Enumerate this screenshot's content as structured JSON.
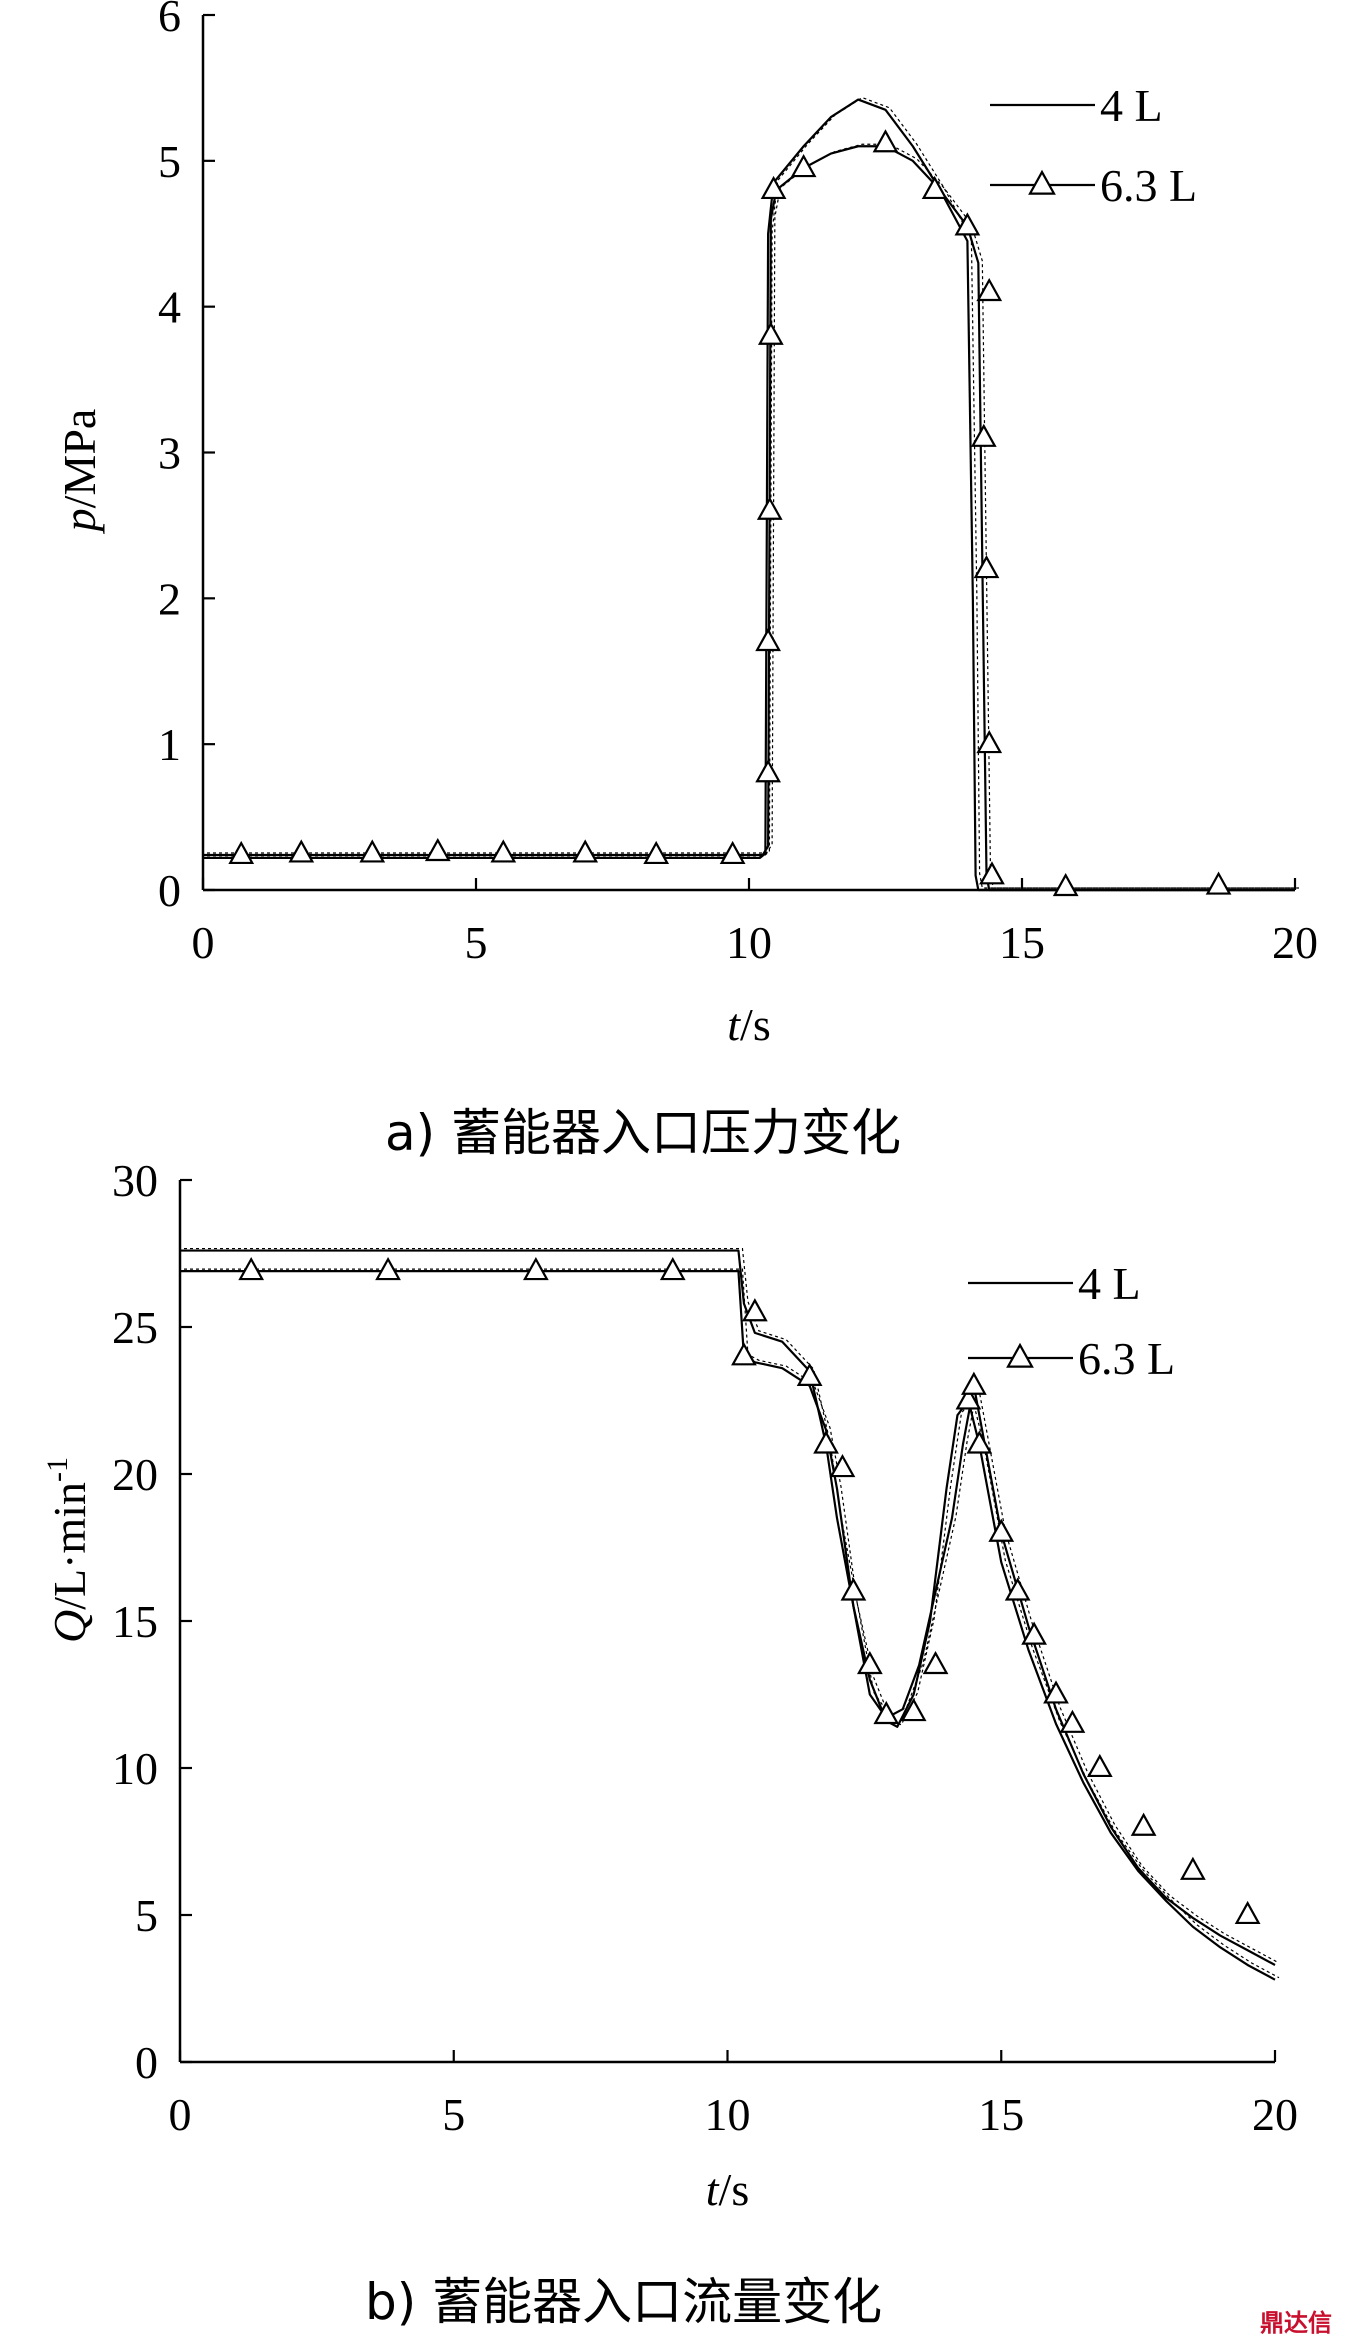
{
  "chart_data": [
    {
      "type": "line",
      "caption": "a)  蓄能器入口压力变化",
      "xlabel_italic": "t",
      "xlabel_unit": "/s",
      "ylabel_italic": "p",
      "ylabel_unit": "/MPa",
      "xlim": [
        0,
        20
      ],
      "ylim": [
        0,
        6
      ],
      "xticks": [
        0,
        5,
        10,
        15,
        20
      ],
      "yticks": [
        0,
        1,
        2,
        3,
        4,
        5,
        6
      ],
      "legend_position": "top-right",
      "series": [
        {
          "name": "4 L",
          "marker": "none",
          "x": [
            0,
            10.2,
            10.3,
            10.35,
            10.45,
            11,
            11.5,
            12,
            12.5,
            13,
            13.5,
            14,
            14.1,
            14.15,
            14.2,
            15,
            20
          ],
          "y": [
            0.22,
            0.22,
            0.25,
            4.5,
            4.85,
            5.1,
            5.3,
            5.42,
            5.35,
            5.1,
            4.8,
            4.45,
            2.0,
            0.1,
            0,
            0,
            0
          ]
        },
        {
          "name": "6.3 L",
          "marker": "triangle",
          "x": [
            0,
            10.25,
            10.35,
            10.4,
            10.5,
            11,
            11.5,
            12,
            12.5,
            13,
            13.5,
            14,
            14.2,
            14.3,
            14.35,
            14.4,
            15,
            20
          ],
          "y": [
            0.24,
            0.24,
            0.3,
            4.6,
            4.8,
            4.95,
            5.05,
            5.1,
            5.1,
            5.0,
            4.8,
            4.55,
            4.3,
            1.5,
            0.1,
            0,
            0,
            0
          ],
          "marker_x": [
            0.7,
            1.8,
            3.1,
            4.3,
            5.5,
            7.0,
            8.3,
            9.7,
            10.35,
            10.35,
            10.38,
            10.4,
            10.45,
            11.0,
            12.5,
            13.4,
            14.0,
            14.3,
            14.35,
            14.4,
            14.4,
            14.45,
            15.8,
            18.6
          ],
          "marker_y": [
            0.24,
            0.25,
            0.25,
            0.26,
            0.25,
            0.25,
            0.24,
            0.24,
            0.8,
            1.7,
            2.6,
            3.8,
            4.8,
            4.95,
            5.12,
            4.8,
            4.55,
            3.1,
            2.2,
            1.0,
            4.1,
            0.1,
            0.02,
            0.03
          ]
        }
      ]
    },
    {
      "type": "line",
      "caption": "b)  蓄能器入口流量变化",
      "xlabel_italic": "t",
      "xlabel_unit": "/s",
      "ylabel_italic": "Q",
      "ylabel_unit": "/L·min",
      "ylabel_sup": "-1",
      "xlim": [
        0,
        20
      ],
      "ylim": [
        0,
        30
      ],
      "xticks": [
        0,
        5,
        10,
        15,
        20
      ],
      "yticks": [
        0,
        5,
        10,
        15,
        20,
        25,
        30
      ],
      "legend_position": "top-right",
      "series": [
        {
          "name": "4 L",
          "marker": "none",
          "x": [
            0,
            10.2,
            10.3,
            10.5,
            11.0,
            11.5,
            11.8,
            12.0,
            12.3,
            12.6,
            12.9,
            13.1,
            13.4,
            13.7,
            14.0,
            14.2,
            14.4,
            14.6,
            14.8,
            15.0,
            15.5,
            16.0,
            16.5,
            17.0,
            17.5,
            18.0,
            18.5,
            19.0,
            19.5,
            20.0
          ],
          "y": [
            27.6,
            27.6,
            25.8,
            24.8,
            24.5,
            23.5,
            21.0,
            18.5,
            15.5,
            13.0,
            11.6,
            11.4,
            12.5,
            15.0,
            19.5,
            22.0,
            22.5,
            21.0,
            19.0,
            17.0,
            14.0,
            11.5,
            9.5,
            7.8,
            6.5,
            5.5,
            4.6,
            3.9,
            3.3,
            2.8
          ]
        },
        {
          "name": "6.3 L",
          "marker": "triangle",
          "x": [
            0,
            10.2,
            10.3,
            10.5,
            11.0,
            11.5,
            11.8,
            12.0,
            12.3,
            12.6,
            12.9,
            13.2,
            13.5,
            13.8,
            14.1,
            14.3,
            14.5,
            14.7,
            15.0,
            15.5,
            16.0,
            16.5,
            17.0,
            17.5,
            18.0,
            18.5,
            19.0,
            19.5,
            20.0
          ],
          "y": [
            26.9,
            26.9,
            24.0,
            23.8,
            23.6,
            23.0,
            21.5,
            19.5,
            15.5,
            12.5,
            11.7,
            12.0,
            13.5,
            16.0,
            18.5,
            21.0,
            23.0,
            21.0,
            18.0,
            14.8,
            12.0,
            9.8,
            8.0,
            6.6,
            5.6,
            4.9,
            4.3,
            3.8,
            3.3
          ],
          "marker_x": [
            1.3,
            3.8,
            6.5,
            9.0,
            10.3,
            10.5,
            11.5,
            11.8,
            12.1,
            12.3,
            12.6,
            12.9,
            13.4,
            13.8,
            14.4,
            14.5,
            14.6,
            15.0,
            15.3,
            15.6,
            16.0,
            16.3,
            16.8,
            17.6,
            18.5,
            19.5
          ],
          "marker_y": [
            26.9,
            26.9,
            26.9,
            26.9,
            24.0,
            25.5,
            23.3,
            21.0,
            20.2,
            16.0,
            13.5,
            11.8,
            11.9,
            13.5,
            22.5,
            23.0,
            21.0,
            18.0,
            16.0,
            14.5,
            12.5,
            11.5,
            10.0,
            8.0,
            6.5,
            5.0
          ]
        }
      ]
    }
  ],
  "watermark": "鼎达信"
}
